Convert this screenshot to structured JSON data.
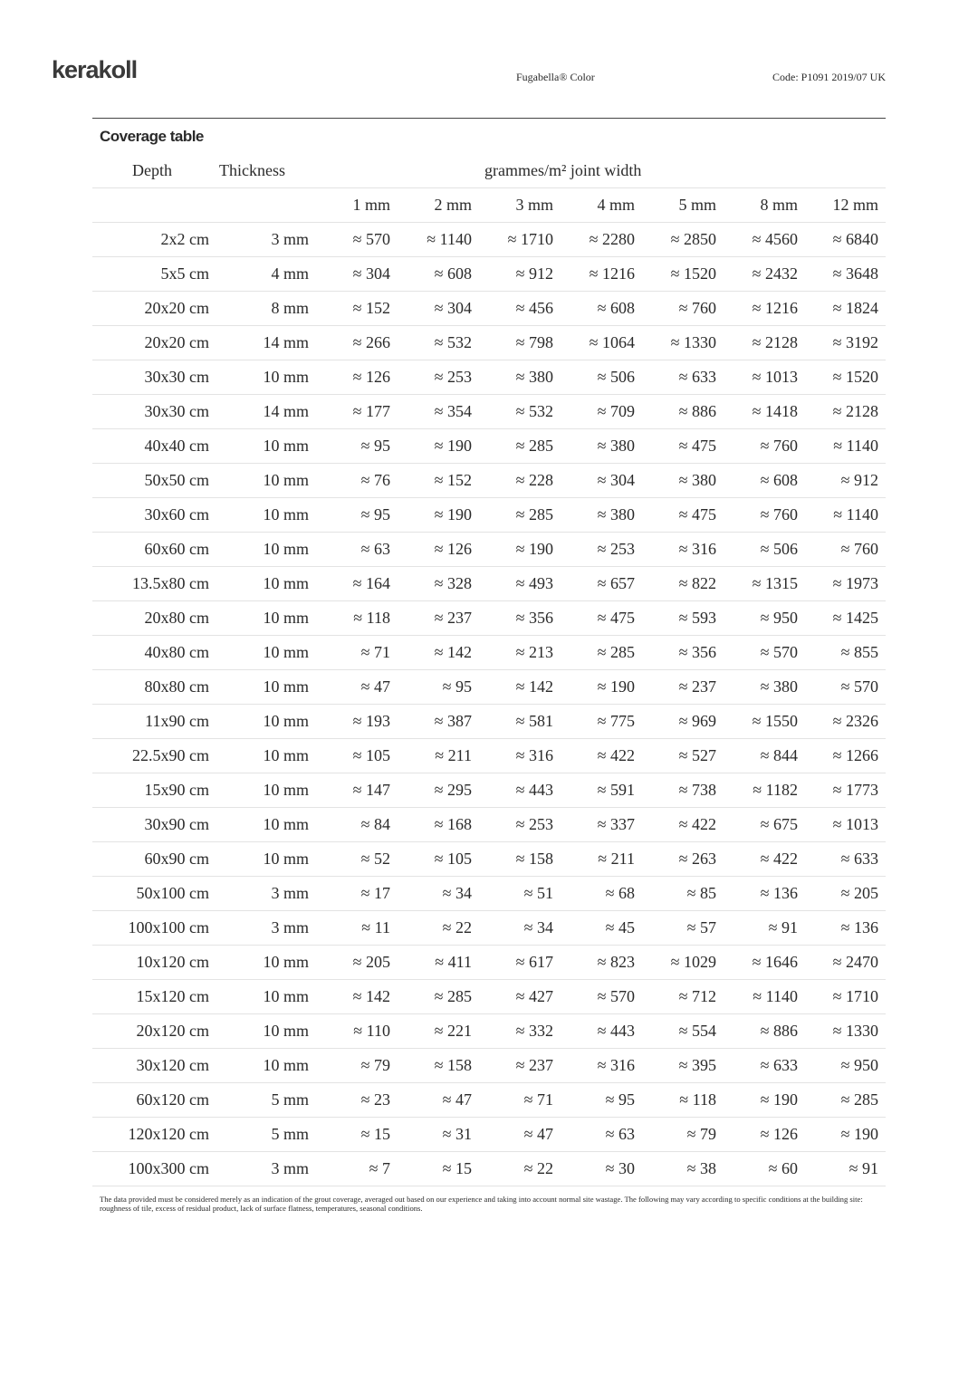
{
  "header": {
    "logo": "kerakoll",
    "product": "Fugabella® Color",
    "code": "Code: P1091 2019/07 UK"
  },
  "table": {
    "title": "Coverage table",
    "headers": {
      "depth": "Depth",
      "thickness": "Thickness",
      "group": "grammes/m² joint width"
    },
    "widths": [
      "1 mm",
      "2 mm",
      "3 mm",
      "4 mm",
      "5 mm",
      "8 mm",
      "12 mm"
    ],
    "rows": [
      [
        "2x2 cm",
        "3 mm",
        "≈ 570",
        "≈ 1140",
        "≈ 1710",
        "≈ 2280",
        "≈ 2850",
        "≈ 4560",
        "≈ 6840"
      ],
      [
        "5x5 cm",
        "4 mm",
        "≈ 304",
        "≈ 608",
        "≈ 912",
        "≈ 1216",
        "≈ 1520",
        "≈ 2432",
        "≈ 3648"
      ],
      [
        "20x20 cm",
        "8 mm",
        "≈ 152",
        "≈ 304",
        "≈ 456",
        "≈ 608",
        "≈ 760",
        "≈ 1216",
        "≈ 1824"
      ],
      [
        "20x20 cm",
        "14 mm",
        "≈ 266",
        "≈ 532",
        "≈ 798",
        "≈ 1064",
        "≈ 1330",
        "≈ 2128",
        "≈ 3192"
      ],
      [
        "30x30 cm",
        "10 mm",
        "≈ 126",
        "≈ 253",
        "≈ 380",
        "≈ 506",
        "≈ 633",
        "≈ 1013",
        "≈ 1520"
      ],
      [
        "30x30 cm",
        "14 mm",
        "≈ 177",
        "≈ 354",
        "≈ 532",
        "≈ 709",
        "≈ 886",
        "≈ 1418",
        "≈ 2128"
      ],
      [
        "40x40 cm",
        "10 mm",
        "≈ 95",
        "≈ 190",
        "≈ 285",
        "≈ 380",
        "≈ 475",
        "≈ 760",
        "≈ 1140"
      ],
      [
        "50x50 cm",
        "10 mm",
        "≈ 76",
        "≈ 152",
        "≈ 228",
        "≈ 304",
        "≈ 380",
        "≈ 608",
        "≈ 912"
      ],
      [
        "30x60 cm",
        "10 mm",
        "≈ 95",
        "≈ 190",
        "≈ 285",
        "≈ 380",
        "≈ 475",
        "≈ 760",
        "≈ 1140"
      ],
      [
        "60x60 cm",
        "10 mm",
        "≈ 63",
        "≈ 126",
        "≈ 190",
        "≈ 253",
        "≈ 316",
        "≈ 506",
        "≈ 760"
      ],
      [
        "13.5x80 cm",
        "10 mm",
        "≈ 164",
        "≈ 328",
        "≈ 493",
        "≈ 657",
        "≈ 822",
        "≈ 1315",
        "≈ 1973"
      ],
      [
        "20x80 cm",
        "10 mm",
        "≈ 118",
        "≈ 237",
        "≈ 356",
        "≈ 475",
        "≈ 593",
        "≈ 950",
        "≈ 1425"
      ],
      [
        "40x80 cm",
        "10 mm",
        "≈ 71",
        "≈ 142",
        "≈ 213",
        "≈ 285",
        "≈ 356",
        "≈ 570",
        "≈ 855"
      ],
      [
        "80x80 cm",
        "10 mm",
        "≈ 47",
        "≈ 95",
        "≈ 142",
        "≈ 190",
        "≈ 237",
        "≈ 380",
        "≈ 570"
      ],
      [
        "11x90 cm",
        "10 mm",
        "≈ 193",
        "≈ 387",
        "≈ 581",
        "≈ 775",
        "≈ 969",
        "≈ 1550",
        "≈ 2326"
      ],
      [
        "22.5x90 cm",
        "10 mm",
        "≈ 105",
        "≈ 211",
        "≈ 316",
        "≈ 422",
        "≈ 527",
        "≈ 844",
        "≈ 1266"
      ],
      [
        "15x90 cm",
        "10 mm",
        "≈ 147",
        "≈ 295",
        "≈ 443",
        "≈ 591",
        "≈ 738",
        "≈ 1182",
        "≈ 1773"
      ],
      [
        "30x90 cm",
        "10 mm",
        "≈ 84",
        "≈ 168",
        "≈ 253",
        "≈ 337",
        "≈ 422",
        "≈ 675",
        "≈ 1013"
      ],
      [
        "60x90 cm",
        "10 mm",
        "≈ 52",
        "≈ 105",
        "≈ 158",
        "≈ 211",
        "≈ 263",
        "≈ 422",
        "≈ 633"
      ],
      [
        "50x100 cm",
        "3 mm",
        "≈ 17",
        "≈ 34",
        "≈ 51",
        "≈ 68",
        "≈ 85",
        "≈ 136",
        "≈ 205"
      ],
      [
        "100x100 cm",
        "3 mm",
        "≈ 11",
        "≈ 22",
        "≈ 34",
        "≈ 45",
        "≈ 57",
        "≈ 91",
        "≈ 136"
      ],
      [
        "10x120 cm",
        "10 mm",
        "≈ 205",
        "≈ 411",
        "≈ 617",
        "≈ 823",
        "≈ 1029",
        "≈ 1646",
        "≈ 2470"
      ],
      [
        "15x120 cm",
        "10 mm",
        "≈ 142",
        "≈ 285",
        "≈ 427",
        "≈ 570",
        "≈ 712",
        "≈ 1140",
        "≈ 1710"
      ],
      [
        "20x120 cm",
        "10 mm",
        "≈ 110",
        "≈ 221",
        "≈ 332",
        "≈ 443",
        "≈ 554",
        "≈ 886",
        "≈ 1330"
      ],
      [
        "30x120 cm",
        "10 mm",
        "≈ 79",
        "≈ 158",
        "≈ 237",
        "≈ 316",
        "≈ 395",
        "≈ 633",
        "≈ 950"
      ],
      [
        "60x120 cm",
        "5 mm",
        "≈ 23",
        "≈ 47",
        "≈ 71",
        "≈ 95",
        "≈ 118",
        "≈ 190",
        "≈ 285"
      ],
      [
        "120x120 cm",
        "5 mm",
        "≈ 15",
        "≈ 31",
        "≈ 47",
        "≈ 63",
        "≈ 79",
        "≈ 126",
        "≈ 190"
      ],
      [
        "100x300 cm",
        "3 mm",
        "≈ 7",
        "≈ 15",
        "≈ 22",
        "≈ 30",
        "≈ 38",
        "≈ 60",
        "≈ 91"
      ]
    ]
  },
  "footnote": "The data provided must be considered merely as an indication of the grout coverage, averaged out based on our experience and taking into account normal site wastage. The following may vary according to specific conditions at the building site: roughness of tile, excess of residual product, lack of surface flatness, temperatures, seasonal conditions."
}
